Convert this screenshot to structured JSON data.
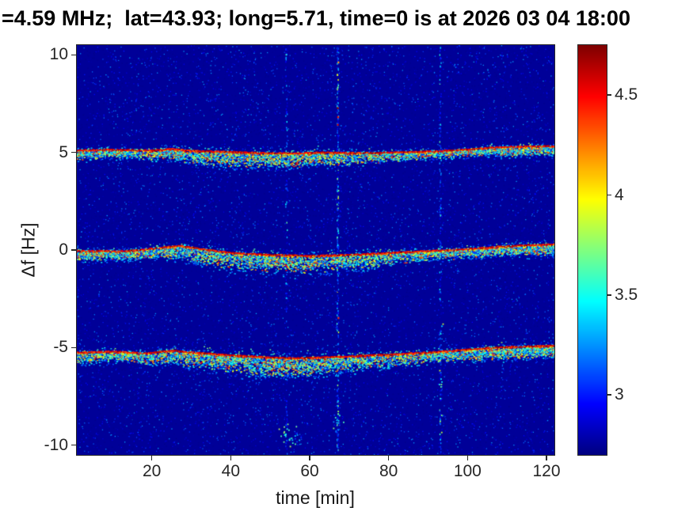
{
  "chart_data": {
    "type": "heatmap",
    "title": "=4.59 MHz;  lat=43.93; long=5.71, time=0 is at 2026 03 04 18:00",
    "xlabel": "time [min]",
    "ylabel": "Δf [Hz]",
    "xlim": [
      1,
      122
    ],
    "ylim": [
      -10.5,
      10.5
    ],
    "x_ticks": [
      20,
      40,
      60,
      80,
      100,
      120
    ],
    "y_ticks": [
      10,
      5,
      0,
      -5,
      -10
    ],
    "grid": false,
    "colormap": "jet",
    "plot_background_color": "#00008f",
    "colorbar": {
      "position": "right",
      "vmin": 2.7,
      "vmax": 4.75,
      "ticks": [
        3,
        3.5,
        4,
        4.5
      ]
    },
    "background_value": 2.75,
    "noise_value_range": [
      2.72,
      3.3
    ],
    "bands": [
      {
        "name": "upper-doppler-trace",
        "approx_center_hz": 5.1,
        "centerline": [
          [
            1,
            5.1
          ],
          [
            10,
            5.15
          ],
          [
            20,
            5.1
          ],
          [
            25,
            5.18
          ],
          [
            30,
            5.08
          ],
          [
            40,
            5.03
          ],
          [
            47,
            4.97
          ],
          [
            55,
            4.95
          ],
          [
            65,
            5.0
          ],
          [
            72,
            4.97
          ],
          [
            80,
            5.0
          ],
          [
            90,
            5.05
          ],
          [
            100,
            5.15
          ],
          [
            106,
            5.25
          ],
          [
            112,
            5.3
          ],
          [
            122,
            5.33
          ]
        ],
        "plume_width_hz": [
          [
            1,
            0.55
          ],
          [
            15,
            0.4
          ],
          [
            28,
            0.65
          ],
          [
            40,
            0.85
          ],
          [
            55,
            0.8
          ],
          [
            70,
            0.65
          ],
          [
            85,
            0.4
          ],
          [
            100,
            0.35
          ],
          [
            110,
            0.5
          ],
          [
            122,
            0.45
          ]
        ],
        "density": [
          [
            1,
            1.25
          ],
          [
            15,
            1.0
          ],
          [
            30,
            1.1
          ],
          [
            50,
            1.15
          ],
          [
            70,
            1.0
          ],
          [
            90,
            0.85
          ],
          [
            103,
            1.1
          ],
          [
            112,
            1.35
          ],
          [
            122,
            1.3
          ]
        ]
      },
      {
        "name": "center-doppler-trace",
        "approx_center_hz": 0,
        "centerline": [
          [
            1,
            -0.05
          ],
          [
            14,
            -0.05
          ],
          [
            22,
            0.12
          ],
          [
            27,
            0.22
          ],
          [
            33,
            0.03
          ],
          [
            40,
            -0.15
          ],
          [
            50,
            -0.25
          ],
          [
            60,
            -0.3
          ],
          [
            70,
            -0.25
          ],
          [
            80,
            -0.15
          ],
          [
            90,
            -0.05
          ],
          [
            100,
            0.05
          ],
          [
            110,
            0.2
          ],
          [
            122,
            0.3
          ]
        ],
        "plume_width_hz": [
          [
            1,
            0.5
          ],
          [
            20,
            0.5
          ],
          [
            30,
            0.8
          ],
          [
            45,
            1.0
          ],
          [
            60,
            1.0
          ],
          [
            75,
            0.8
          ],
          [
            90,
            0.5
          ],
          [
            105,
            0.5
          ],
          [
            122,
            0.6
          ]
        ],
        "density": [
          [
            1,
            1.1
          ],
          [
            25,
            1.25
          ],
          [
            40,
            1.05
          ],
          [
            60,
            1.0
          ],
          [
            80,
            0.9
          ],
          [
            100,
            1.1
          ],
          [
            112,
            1.35
          ],
          [
            122,
            1.4
          ]
        ]
      },
      {
        "name": "lower-doppler-trace",
        "approx_center_hz": -5.2,
        "centerline": [
          [
            1,
            -5.25
          ],
          [
            10,
            -5.2
          ],
          [
            18,
            -5.3
          ],
          [
            25,
            -5.15
          ],
          [
            30,
            -5.25
          ],
          [
            40,
            -5.4
          ],
          [
            50,
            -5.5
          ],
          [
            56,
            -5.55
          ],
          [
            62,
            -5.5
          ],
          [
            70,
            -5.45
          ],
          [
            80,
            -5.35
          ],
          [
            90,
            -5.25
          ],
          [
            100,
            -5.1
          ],
          [
            106,
            -5.0
          ],
          [
            112,
            -4.95
          ],
          [
            122,
            -4.9
          ]
        ],
        "plume_width_hz": [
          [
            1,
            0.6
          ],
          [
            15,
            0.5
          ],
          [
            30,
            0.85
          ],
          [
            45,
            1.1
          ],
          [
            60,
            1.0
          ],
          [
            75,
            0.8
          ],
          [
            90,
            0.55
          ],
          [
            100,
            0.6
          ],
          [
            110,
            0.7
          ],
          [
            122,
            0.6
          ]
        ],
        "density": [
          [
            1,
            1.1
          ],
          [
            25,
            1.0
          ],
          [
            45,
            1.3
          ],
          [
            60,
            1.2
          ],
          [
            85,
            0.9
          ],
          [
            103,
            1.3
          ],
          [
            122,
            1.3
          ]
        ]
      }
    ],
    "vertical_artifacts": [
      {
        "t": 54,
        "strength": 0.35
      },
      {
        "t": 67,
        "strength": 0.8
      },
      {
        "t": 93,
        "strength": 0.45
      }
    ],
    "noise_clusters": [
      {
        "t": 55,
        "y": -9.5,
        "t_spread": 4.0,
        "y_spread": 0.5,
        "count": 30
      },
      {
        "t": 67,
        "y": -8.8,
        "t_spread": 1.5,
        "y_spread": 0.8,
        "count": 15
      },
      {
        "t": 93,
        "y": -6.5,
        "t_spread": 1.0,
        "y_spread": 2.5,
        "count": 18
      }
    ]
  }
}
